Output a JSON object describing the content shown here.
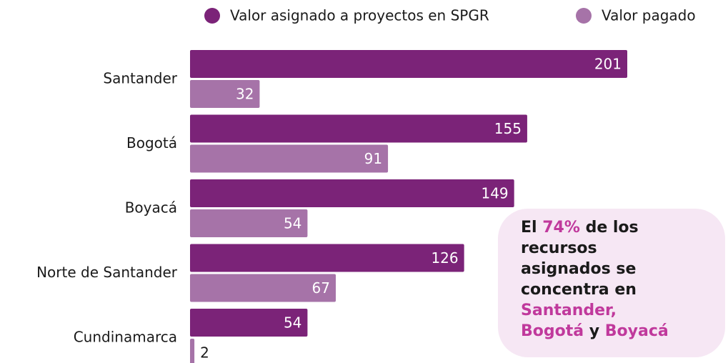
{
  "chart_data": {
    "type": "barh",
    "categories": [
      "Santander",
      "Bogotá",
      "Boyacá",
      "Norte de Santander",
      "Cundinamarca"
    ],
    "series": [
      {
        "name": "Valor asignado a proyectos en SPGR",
        "color": "#7b2378",
        "values": [
          201,
          155,
          149,
          126,
          54
        ]
      },
      {
        "name": "Valor pagado",
        "color": "#a673a8",
        "values": [
          32,
          91,
          54,
          67,
          2
        ]
      }
    ],
    "legend": "top",
    "annotation": {
      "lines": [
        [
          {
            "text": "El "
          },
          {
            "text": "74%",
            "highlight": true
          },
          {
            "text": " de los"
          }
        ],
        [
          {
            "text": "recursos"
          }
        ],
        [
          {
            "text": "asignados se"
          }
        ],
        [
          {
            "text": "concentra en"
          }
        ],
        [
          {
            "text": "Santander,",
            "highlight": true
          }
        ],
        [
          {
            "text": "Bogotá",
            "highlight": true
          },
          {
            "text": " y "
          },
          {
            "text": "Boyacá",
            "highlight": true
          }
        ]
      ],
      "highlight_color": "#c0399c",
      "text_color": "#1a1a1a",
      "background": "#f6e7f4"
    }
  }
}
